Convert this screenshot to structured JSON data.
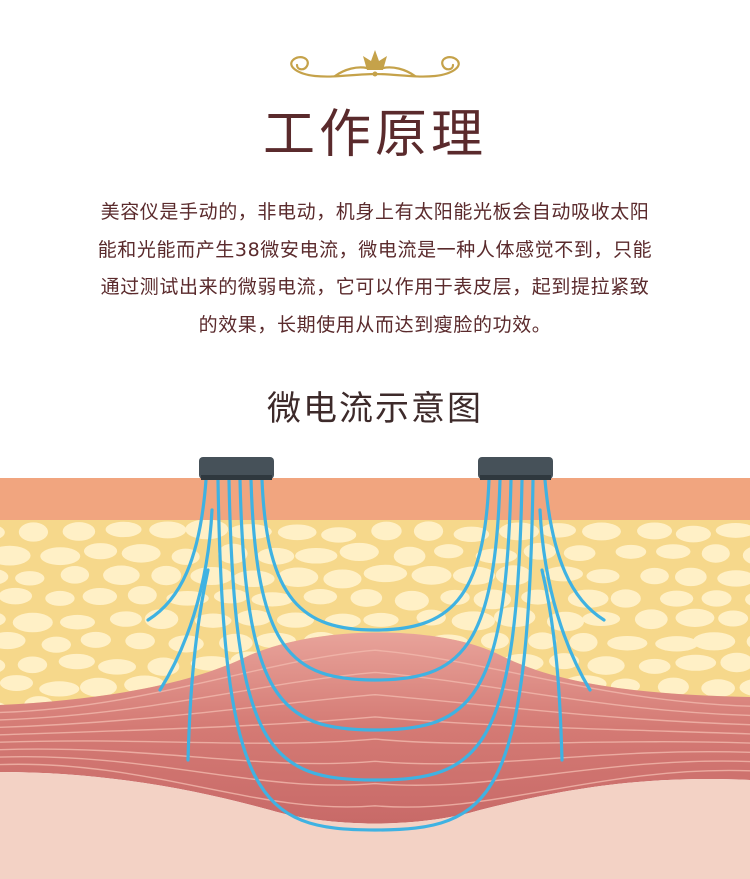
{
  "header": {
    "ornament_icon": "gold-flourish-crown-icon",
    "title": "工作原理",
    "description_lines": [
      "美容仪是手动的，非电动，机身上有太阳能光板会自动吸收太阳",
      "能和光能而产生38微安电流，微电流是一种人体感觉不到，只能",
      "通过测试出来的微弱电流，它可以作用于表皮层，起到提拉紧致",
      "的效果，长期使用从而达到瘦脸的功效。"
    ]
  },
  "diagram": {
    "subtitle": "微电流示意图",
    "colors": {
      "skin_top": "#f1a57f",
      "fat_layer": "#f6d88b",
      "fat_cell": "#fff0c6",
      "muscle": "#cf6f6b",
      "muscle_light": "#e9a9a0",
      "base": "#f3d2c5",
      "current": "#3fb2e2",
      "electrode": "#465159",
      "title_color": "#5a2a2c",
      "ornament_gold": "#c5a24a"
    }
  }
}
